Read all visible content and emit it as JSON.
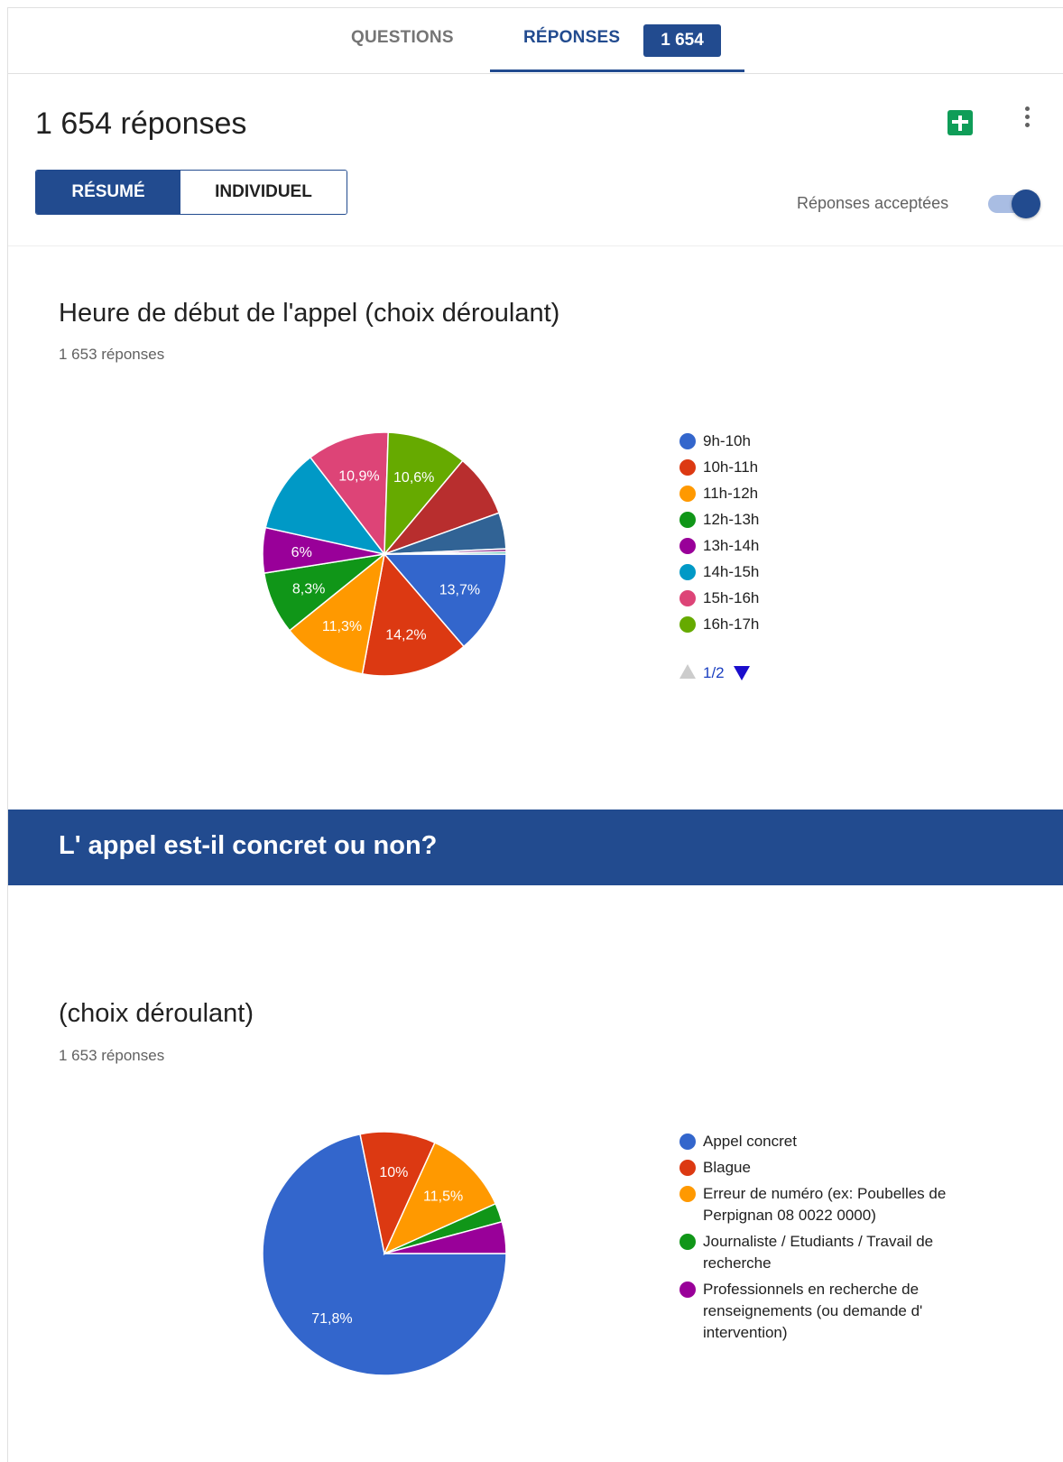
{
  "tabs": {
    "questions_label": "QUESTIONS",
    "reponses_label": "RÉPONSES",
    "reponses_count": "1 654"
  },
  "header": {
    "title": "1 654 réponses",
    "segment_resume": "RÉSUMÉ",
    "segment_individuel": "INDIVIDUEL",
    "accepting_label": "Réponses acceptées",
    "accepting_on": true,
    "sheets_icon": "google-sheets-icon",
    "more_icon": "more-vert-icon"
  },
  "question1": {
    "title": "Heure de début de l'appel (choix déroulant)",
    "response_count": "1 653 réponses",
    "pager": "1/2"
  },
  "section": {
    "title": "L' appel est-il concret ou non?"
  },
  "question2": {
    "title": "(choix déroulant)",
    "response_count": "1 653 réponses"
  },
  "chart_data": [
    {
      "type": "pie",
      "title": "Heure de début de l'appel (choix déroulant)",
      "slices": [
        {
          "label": "9h-10h",
          "value": 13.7,
          "color": "#3366cc",
          "show_label": "13,7%"
        },
        {
          "label": "10h-11h",
          "value": 14.2,
          "color": "#dc3912",
          "show_label": "14,2%"
        },
        {
          "label": "11h-12h",
          "value": 11.3,
          "color": "#ff9900",
          "show_label": "11,3%"
        },
        {
          "label": "12h-13h",
          "value": 8.3,
          "color": "#109618",
          "show_label": "8,3%"
        },
        {
          "label": "13h-14h",
          "value": 6.0,
          "color": "#990099",
          "show_label": "6%"
        },
        {
          "label": "14h-15h",
          "value": 11.1,
          "color": "#0099c6",
          "show_label": ""
        },
        {
          "label": "15h-16h",
          "value": 10.9,
          "color": "#dd4477",
          "show_label": "10,9%"
        },
        {
          "label": "16h-17h",
          "value": 10.6,
          "color": "#66aa00",
          "show_label": "10,6%"
        },
        {
          "label": "",
          "value": 8.4,
          "color": "#b82e2e",
          "show_label": ""
        },
        {
          "label": "",
          "value": 4.8,
          "color": "#316395",
          "show_label": ""
        },
        {
          "label": "",
          "value": 0.4,
          "color": "#994499",
          "show_label": ""
        },
        {
          "label": "",
          "value": 0.3,
          "color": "#22aa99",
          "show_label": ""
        }
      ],
      "legend_items": [
        "9h-10h",
        "10h-11h",
        "11h-12h",
        "12h-13h",
        "13h-14h",
        "14h-15h",
        "15h-16h",
        "16h-17h"
      ],
      "legend_placement": "right"
    },
    {
      "type": "pie",
      "title": "(choix déroulant)",
      "slices": [
        {
          "label": "Appel concret",
          "value": 71.8,
          "color": "#3366cc",
          "show_label": "71,8%"
        },
        {
          "label": "Blague",
          "value": 10.0,
          "color": "#dc3912",
          "show_label": "10%"
        },
        {
          "label": "Erreur de numéro (ex: Poubelles de Perpignan 08 0022 0000)",
          "value": 11.5,
          "color": "#ff9900",
          "show_label": "11,5%"
        },
        {
          "label": "Journaliste / Etudiants / Travail de recherche",
          "value": 2.5,
          "color": "#109618",
          "show_label": ""
        },
        {
          "label": "Professionnels en recherche de renseignements (ou demande d' intervention)",
          "value": 4.2,
          "color": "#990099",
          "show_label": ""
        }
      ],
      "legend_items": [
        "Appel concret",
        "Blague",
        "Erreur de numéro (ex: Poubelles de Perpignan 08 0022 0000)",
        "Journaliste / Etudiants / Travail de recherche",
        "Professionnels en recherche de renseignements (ou demande d' intervention)"
      ],
      "legend_placement": "right"
    }
  ]
}
